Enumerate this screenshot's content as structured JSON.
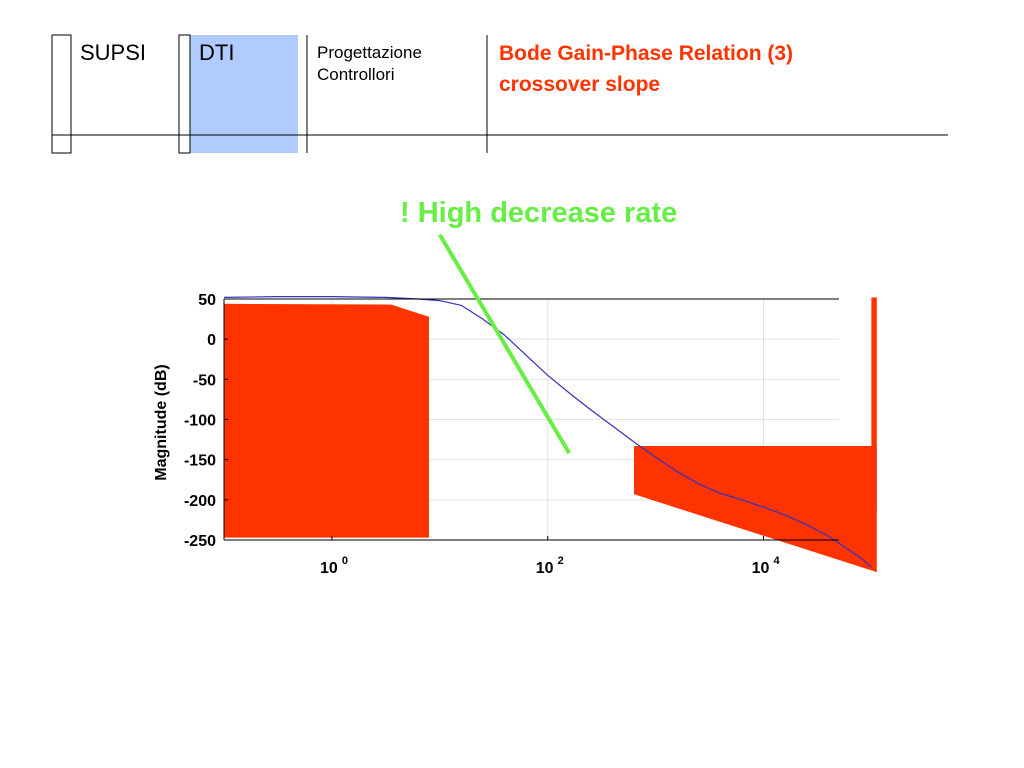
{
  "header": {
    "institution": "SUPSI",
    "department": "DTI",
    "course_line1": "Progettazione",
    "course_line2": "Controllori",
    "title_line1": "Bode Gain-Phase Relation (3)",
    "title_line2": "crossover slope",
    "title_color": "#ff3300",
    "dti_color": "#b0ccff"
  },
  "annotation": {
    "text": "! High decrease rate",
    "color": "#66ee44"
  },
  "chart_data": {
    "type": "line",
    "title": "",
    "xlabel": "",
    "ylabel": "Magnitude (dB)",
    "xscale": "log",
    "xlim_decades": [
      -1,
      4.7
    ],
    "ylim": [
      -250,
      50
    ],
    "yticks": [
      50,
      0,
      -50,
      -100,
      -150,
      -200,
      -250
    ],
    "xtick_labels": [
      {
        "base": "10",
        "exp": "0",
        "decade": 0
      },
      {
        "base": "10",
        "exp": "2",
        "decade": 2
      },
      {
        "base": "10",
        "exp": "4",
        "decade": 4
      }
    ],
    "grid": true,
    "series": [
      {
        "color": "#3333bb",
        "points": [
          [
            -1,
            52
          ],
          [
            -0.5,
            53
          ],
          [
            0,
            53
          ],
          [
            0.5,
            52
          ],
          [
            0.8,
            50
          ],
          [
            1.0,
            48
          ],
          [
            1.2,
            42
          ],
          [
            1.4,
            25
          ],
          [
            1.6,
            5
          ],
          [
            1.8,
            -20
          ],
          [
            2.0,
            -45
          ],
          [
            2.2,
            -67
          ],
          [
            2.4,
            -88
          ],
          [
            2.6,
            -108
          ],
          [
            2.8,
            -128
          ],
          [
            3.0,
            -147
          ],
          [
            3.2,
            -165
          ],
          [
            3.4,
            -180
          ],
          [
            3.6,
            -192
          ],
          [
            3.8,
            -200
          ],
          [
            4.0,
            -209
          ],
          [
            4.2,
            -219
          ],
          [
            4.4,
            -231
          ],
          [
            4.6,
            -245
          ],
          [
            4.9,
            -272
          ],
          [
            5.0,
            -284
          ]
        ]
      }
    ],
    "slope_line": {
      "color": "#66ee44",
      "points": [
        [
          1.0,
          130
        ],
        [
          2.2,
          -142
        ]
      ]
    },
    "masks": {
      "color": "#ff3300",
      "regions": [
        [
          [
            -1,
            44
          ],
          [
            0.55,
            43
          ],
          [
            0.9,
            28
          ],
          [
            0.9,
            -247
          ],
          [
            -1,
            -247
          ]
        ],
        [
          [
            2.8,
            -133
          ],
          [
            5.05,
            -133
          ],
          [
            5.05,
            -290
          ],
          [
            2.8,
            -193
          ]
        ],
        [
          [
            3.0,
            52
          ],
          [
            5.05,
            52
          ],
          [
            5.05,
            -215
          ],
          [
            5.0,
            -215
          ],
          [
            5.0,
            52
          ],
          [
            3.0,
            52
          ]
        ]
      ]
    }
  }
}
